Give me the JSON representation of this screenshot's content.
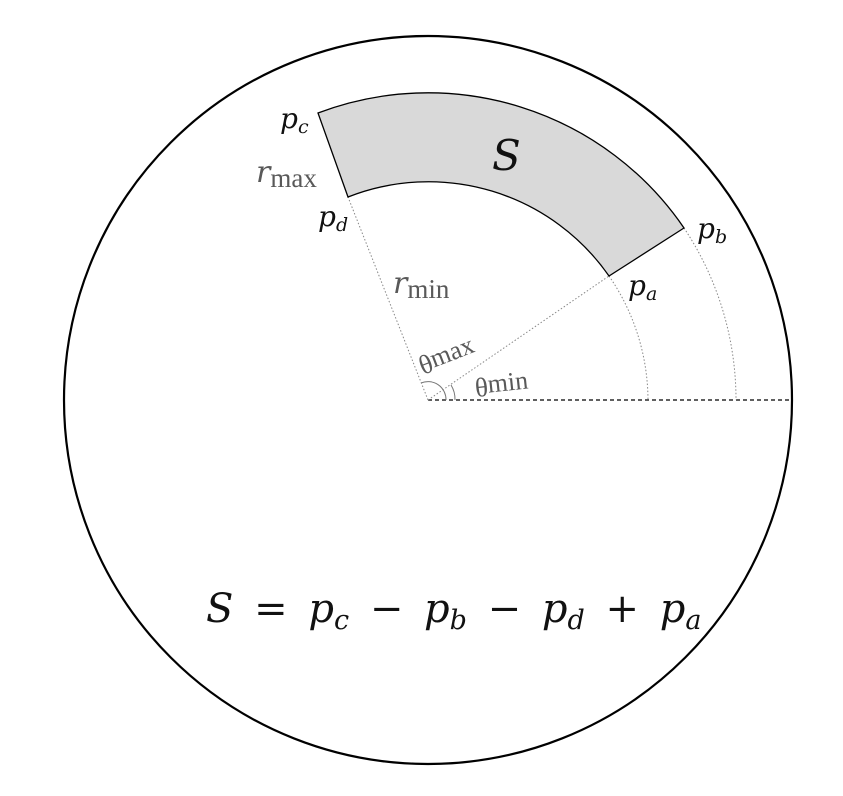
{
  "diagram": {
    "region_label": "S",
    "points": {
      "pc": {
        "base": "p",
        "sub": "c"
      },
      "pd": {
        "base": "p",
        "sub": "d"
      },
      "pb": {
        "base": "p",
        "sub": "b"
      },
      "pa": {
        "base": "p",
        "sub": "a"
      }
    },
    "radii": {
      "rmax": {
        "base": "r",
        "sub": "max"
      },
      "rmin": {
        "base": "r",
        "sub": "min"
      }
    },
    "angles": {
      "theta_max": {
        "base": "θ",
        "sub": "max"
      },
      "theta_min": {
        "base": "θ",
        "sub": "min"
      }
    },
    "formula": {
      "lhs": "S",
      "eq": "=",
      "terms": [
        {
          "sign": "",
          "base": "p",
          "sub": "c"
        },
        {
          "sign": "−",
          "base": "p",
          "sub": "b"
        },
        {
          "sign": "−",
          "base": "p",
          "sub": "d"
        },
        {
          "sign": "+",
          "base": "p",
          "sub": "a"
        }
      ]
    },
    "colors": {
      "sector_fill": "#d9d9d9",
      "stroke": "#000000",
      "guide": "#888888",
      "label_gray": "#595959"
    }
  }
}
